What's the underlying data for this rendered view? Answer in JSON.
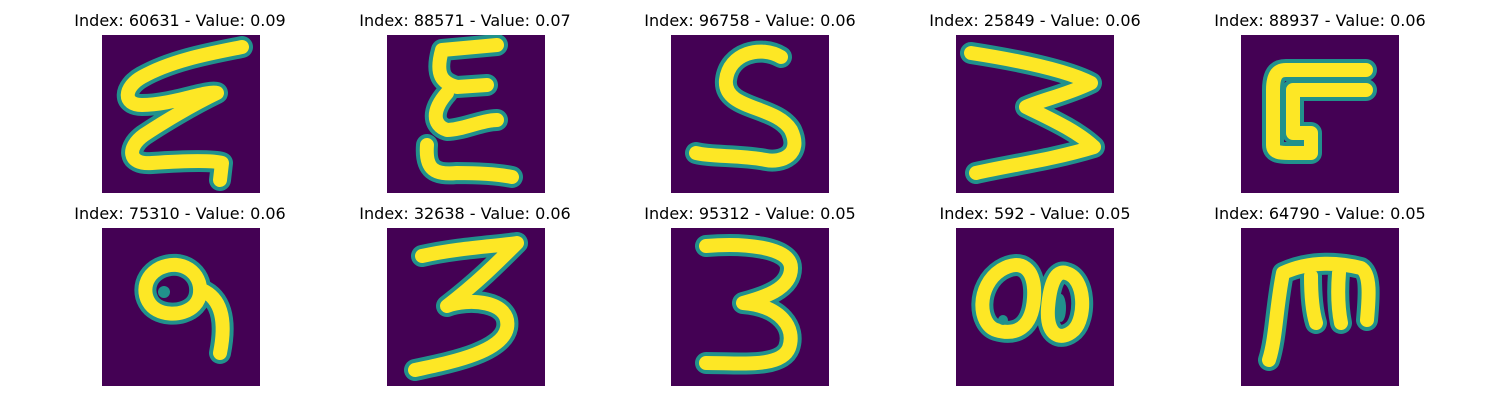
{
  "colors": {
    "background": "#440154",
    "stroke": "#fde725",
    "edge": "#21918c",
    "edge_dark": "#3b528b"
  },
  "panels": [
    {
      "title": "Index: 60631 - Value: 0.09",
      "glyph": "looped-epsilon"
    },
    {
      "title": "Index: 88571 - Value: 0.07",
      "glyph": "sigma-like"
    },
    {
      "title": "Index: 96758 - Value: 0.06",
      "glyph": "s-shape"
    },
    {
      "title": "Index: 25849 - Value: 0.06",
      "glyph": "sideways-w"
    },
    {
      "title": "Index: 88937 - Value: 0.06",
      "glyph": "bracket-shape"
    },
    {
      "title": "Index: 75310 - Value: 0.06",
      "glyph": "blob-with-tail"
    },
    {
      "title": "Index: 32638 - Value: 0.06",
      "glyph": "three"
    },
    {
      "title": "Index: 95312 - Value: 0.05",
      "glyph": "three"
    },
    {
      "title": "Index: 592 - Value: 0.05",
      "glyph": "blob-pair"
    },
    {
      "title": "Index: 64790 - Value: 0.05",
      "glyph": "m-shape"
    }
  ]
}
